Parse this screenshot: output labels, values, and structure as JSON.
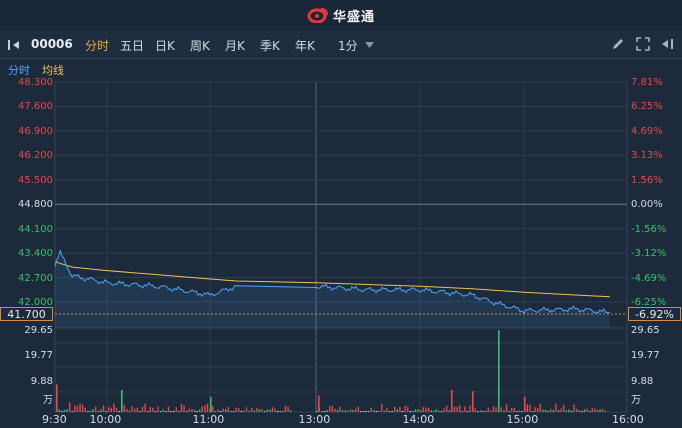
{
  "app": {
    "title": "华盛通"
  },
  "toolbar": {
    "symbol": "00006",
    "tabs": [
      "分时",
      "五日",
      "日K",
      "周K",
      "月K",
      "季K",
      "年K"
    ],
    "active_tab": "分时",
    "interval": "1分"
  },
  "subbar": {
    "left": "分时",
    "right": "均线"
  },
  "price_axis": {
    "left_labels": [
      "48.300",
      "47.600",
      "46.900",
      "46.200",
      "45.500",
      "44.800",
      "44.100",
      "43.400",
      "42.700",
      "42.000"
    ],
    "right_labels": [
      "7.81%",
      "6.25%",
      "4.69%",
      "3.13%",
      "1.56%",
      "0.00%",
      "-1.56%",
      "-3.12%",
      "-4.69%",
      "-6.25%"
    ],
    "current_price": "41.700",
    "current_pct": "-6.92%"
  },
  "volume_axis": {
    "labels": [
      "29.65",
      "19.77",
      "9.88"
    ],
    "unit": "万"
  },
  "time_axis": [
    "9:30",
    "10:00",
    "11:00",
    "13:00",
    "14:00",
    "15:00",
    "16:00"
  ],
  "colors": {
    "up": "#e34a4a",
    "down": "#3fbf6a",
    "neutral": "#d6dce6",
    "price": "#4fa3f7",
    "avg": "#f1c34b",
    "accent": "#f3a638"
  },
  "chart_data": {
    "type": "line",
    "prev_close": 44.8,
    "ylim": [
      42.0,
      48.3
    ],
    "series": [
      {
        "name": "分时",
        "x": [
          "9:30",
          "9:33",
          "9:40",
          "10:00",
          "10:30",
          "11:00",
          "11:30",
          "13:00",
          "13:30",
          "14:00",
          "14:30",
          "14:45",
          "15:00",
          "15:30",
          "15:50"
        ],
        "values": [
          43.1,
          43.4,
          42.75,
          42.55,
          42.45,
          42.2,
          42.45,
          42.45,
          42.35,
          42.35,
          42.2,
          41.95,
          41.75,
          41.8,
          41.7
        ]
      },
      {
        "name": "均线",
        "x": [
          "9:30",
          "9:40",
          "10:00",
          "10:30",
          "11:00",
          "11:30",
          "13:00",
          "13:30",
          "14:00",
          "14:30",
          "15:00",
          "15:30",
          "15:50"
        ],
        "values": [
          43.15,
          43.0,
          42.9,
          42.78,
          42.66,
          42.6,
          42.55,
          42.5,
          42.45,
          42.38,
          42.28,
          42.2,
          42.15
        ]
      }
    ],
    "volume": {
      "max_label": 29.65,
      "peaks": [
        {
          "x": "14:30",
          "value": 7.5
        },
        {
          "x": "14:45",
          "value": 29.65
        },
        {
          "x": "15:00",
          "value": 5.5
        }
      ]
    }
  }
}
